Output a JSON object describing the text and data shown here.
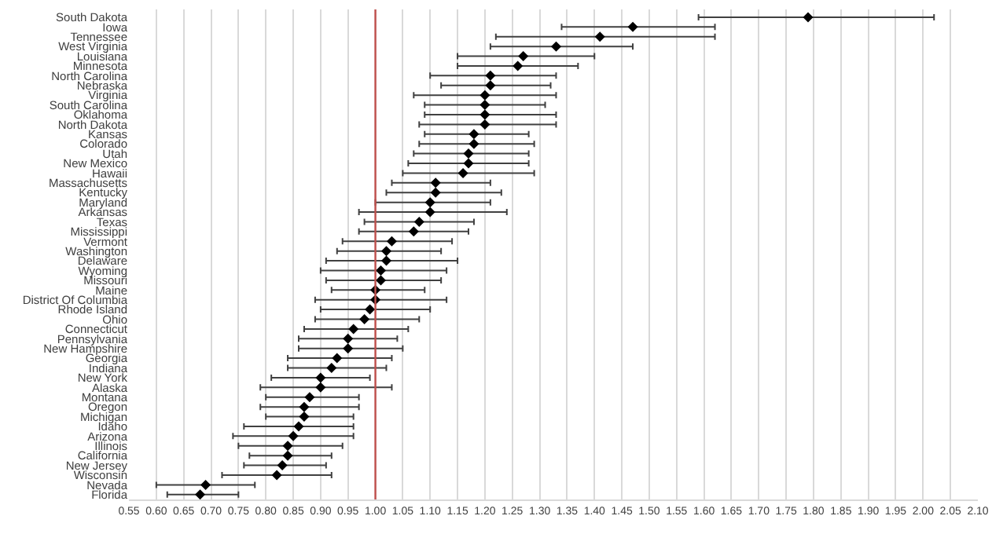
{
  "chart_data": {
    "type": "scatter",
    "orientation": "horizontal",
    "marker": "diamond",
    "grid": "x",
    "categories": [
      "South Dakota",
      "Iowa",
      "Tennessee",
      "West Virginia",
      "Louisiana",
      "Minnesota",
      "North Carolina",
      "Nebraska",
      "Virginia",
      "South Carolina",
      "Oklahoma",
      "North Dakota",
      "Kansas",
      "Colorado",
      "Utah",
      "New Mexico",
      "Hawaii",
      "Massachusetts",
      "Kentucky",
      "Maryland",
      "Arkansas",
      "Texas",
      "Mississippi",
      "Vermont",
      "Washington",
      "Delaware",
      "Wyoming",
      "Missouri",
      "Maine",
      "District Of Columbia",
      "Rhode Island",
      "Ohio",
      "Connecticut",
      "Pennsylvania",
      "New Hampshire",
      "Georgia",
      "Indiana",
      "New York",
      "Alaska",
      "Montana",
      "Oregon",
      "Michigan",
      "Idaho",
      "Arizona",
      "Illinois",
      "California",
      "New Jersey",
      "Wisconsin",
      "Nevada",
      "Florida"
    ],
    "series": [
      {
        "color": "#000000",
        "values": [
          1.79,
          1.47,
          1.41,
          1.33,
          1.27,
          1.26,
          1.21,
          1.21,
          1.2,
          1.2,
          1.2,
          1.2,
          1.18,
          1.18,
          1.17,
          1.17,
          1.16,
          1.11,
          1.11,
          1.1,
          1.1,
          1.08,
          1.07,
          1.03,
          1.02,
          1.02,
          1.01,
          1.01,
          1.0,
          1.0,
          0.99,
          0.98,
          0.96,
          0.95,
          0.95,
          0.93,
          0.92,
          0.9,
          0.9,
          0.88,
          0.87,
          0.87,
          0.86,
          0.85,
          0.84,
          0.84,
          0.83,
          0.82,
          0.69,
          0.68
        ],
        "errors": [
          [
            1.59,
            2.02
          ],
          [
            1.34,
            1.62
          ],
          [
            1.22,
            1.62
          ],
          [
            1.21,
            1.47
          ],
          [
            1.15,
            1.4
          ],
          [
            1.15,
            1.37
          ],
          [
            1.1,
            1.33
          ],
          [
            1.12,
            1.32
          ],
          [
            1.07,
            1.33
          ],
          [
            1.09,
            1.31
          ],
          [
            1.09,
            1.33
          ],
          [
            1.08,
            1.33
          ],
          [
            1.09,
            1.28
          ],
          [
            1.08,
            1.29
          ],
          [
            1.07,
            1.28
          ],
          [
            1.06,
            1.28
          ],
          [
            1.05,
            1.29
          ],
          [
            1.03,
            1.21
          ],
          [
            1.02,
            1.23
          ],
          [
            1.0,
            1.21
          ],
          [
            0.97,
            1.24
          ],
          [
            0.98,
            1.18
          ],
          [
            0.97,
            1.17
          ],
          [
            0.94,
            1.14
          ],
          [
            0.93,
            1.12
          ],
          [
            0.91,
            1.15
          ],
          [
            0.9,
            1.13
          ],
          [
            0.91,
            1.12
          ],
          [
            0.92,
            1.09
          ],
          [
            0.89,
            1.13
          ],
          [
            0.9,
            1.1
          ],
          [
            0.89,
            1.08
          ],
          [
            0.87,
            1.06
          ],
          [
            0.86,
            1.04
          ],
          [
            0.86,
            1.05
          ],
          [
            0.84,
            1.03
          ],
          [
            0.84,
            1.02
          ],
          [
            0.81,
            0.99
          ],
          [
            0.79,
            1.03
          ],
          [
            0.8,
            0.97
          ],
          [
            0.79,
            0.97
          ],
          [
            0.8,
            0.96
          ],
          [
            0.76,
            0.96
          ],
          [
            0.74,
            0.96
          ],
          [
            0.75,
            0.94
          ],
          [
            0.77,
            0.92
          ],
          [
            0.76,
            0.91
          ],
          [
            0.72,
            0.92
          ],
          [
            0.6,
            0.78
          ],
          [
            0.62,
            0.75
          ]
        ]
      }
    ],
    "xlim": [
      0.55,
      2.1
    ],
    "xticks": [
      {
        "value": 0.55,
        "label": "0.55"
      },
      {
        "value": 0.6,
        "label": "0.60"
      },
      {
        "value": 0.65,
        "label": "0.65"
      },
      {
        "value": 0.7,
        "label": "0.70"
      },
      {
        "value": 0.75,
        "label": "0.75"
      },
      {
        "value": 0.8,
        "label": "0.80"
      },
      {
        "value": 0.85,
        "label": "0.85"
      },
      {
        "value": 0.9,
        "label": "0.90"
      },
      {
        "value": 0.95,
        "label": "0.95"
      },
      {
        "value": 1.0,
        "label": "1.00"
      },
      {
        "value": 1.05,
        "label": "1.05"
      },
      {
        "value": 1.1,
        "label": "1.10"
      },
      {
        "value": 1.15,
        "label": "1.15"
      },
      {
        "value": 1.2,
        "label": "1.20"
      },
      {
        "value": 1.25,
        "label": "1.25"
      },
      {
        "value": 1.3,
        "label": "1.30"
      },
      {
        "value": 1.35,
        "label": "1.35"
      },
      {
        "value": 1.4,
        "label": "1.40"
      },
      {
        "value": 1.45,
        "label": "1.45"
      },
      {
        "value": 1.5,
        "label": "1.50"
      },
      {
        "value": 1.55,
        "label": "1.55"
      },
      {
        "value": 1.6,
        "label": "1.60"
      },
      {
        "value": 1.65,
        "label": "1.65"
      },
      {
        "value": 1.7,
        "label": "1.70"
      },
      {
        "value": 1.75,
        "label": "1.75"
      },
      {
        "value": 1.8,
        "label": "1.80"
      },
      {
        "value": 1.85,
        "label": "1.85"
      },
      {
        "value": 1.9,
        "label": "1.90"
      },
      {
        "value": 1.95,
        "label": "1.95"
      },
      {
        "value": 2.0,
        "label": "2.00"
      },
      {
        "value": 2.05,
        "label": "2.05"
      },
      {
        "value": 2.1,
        "label": "2.10"
      }
    ],
    "ref_lines": [
      {
        "axis": "x",
        "value": 1.0,
        "color": "#c0504d"
      }
    ]
  }
}
